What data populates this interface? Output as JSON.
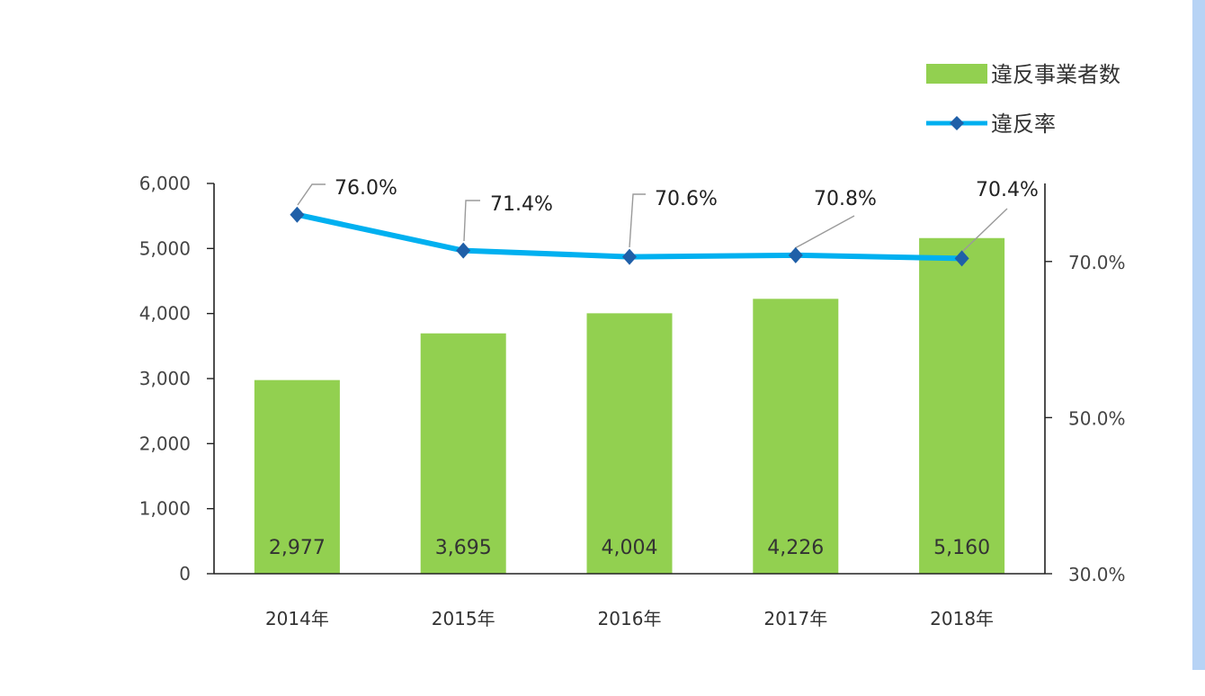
{
  "chart_data": {
    "type": "bar",
    "categories": [
      "2014年",
      "2015年",
      "2016年",
      "2017年",
      "2018年"
    ],
    "series": [
      {
        "name": "違反事業者数",
        "type": "bar",
        "axis": "left",
        "color": "#92d050",
        "values": [
          2977,
          3695,
          4004,
          4226,
          5160
        ],
        "labels": [
          "2,977",
          "3,695",
          "4,004",
          "4,226",
          "5,160"
        ]
      },
      {
        "name": "違反率",
        "type": "line",
        "axis": "right",
        "color": "#00b0f0",
        "marker_color": "#1f5fa8",
        "values": [
          76.0,
          71.4,
          70.6,
          70.8,
          70.4
        ],
        "labels": [
          "76.0%",
          "71.4%",
          "70.6%",
          "70.8%",
          "70.4%"
        ]
      }
    ],
    "y_left": {
      "ylim": [
        0,
        6000
      ],
      "ticks": [
        0,
        1000,
        2000,
        3000,
        4000,
        5000,
        6000
      ],
      "tick_labels": [
        "0",
        "1,000",
        "2,000",
        "3,000",
        "4,000",
        "5,000",
        "6,000"
      ]
    },
    "y_right": {
      "ylim": [
        30,
        80
      ],
      "ticks": [
        30,
        50,
        70
      ],
      "tick_labels": [
        "30.0%",
        "50.0%",
        "70.0%"
      ]
    },
    "legend_position": "top-right",
    "grid": false
  }
}
